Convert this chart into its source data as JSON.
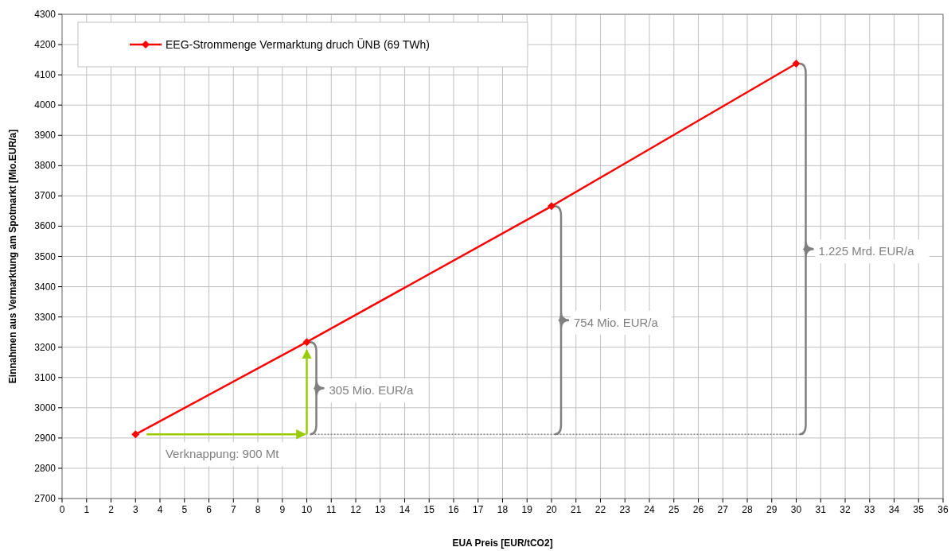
{
  "chart_data": {
    "type": "line",
    "xlabel": "EUA Preis [EUR/tCO2]",
    "ylabel": "Einnahmen aus Vermarktung am Spotmarkt [Mio.EUR/a]",
    "x": [
      3,
      10,
      20,
      30
    ],
    "series": [
      {
        "name": "EEG-Strommenge Vermarktung druch ÜNB (69 TWh)",
        "color": "#ff0000",
        "values": [
          2912,
          3217,
          3666,
          4137
        ]
      }
    ],
    "xlim": [
      0,
      36
    ],
    "xticks": [
      0,
      1,
      2,
      3,
      4,
      5,
      6,
      7,
      8,
      9,
      10,
      11,
      12,
      13,
      14,
      15,
      16,
      17,
      18,
      19,
      20,
      21,
      22,
      23,
      24,
      25,
      26,
      27,
      28,
      29,
      30,
      31,
      32,
      33,
      34,
      35,
      36
    ],
    "ylim": [
      2700,
      4300
    ],
    "yticks": [
      2700,
      2800,
      2900,
      3000,
      3100,
      3200,
      3300,
      3400,
      3500,
      3600,
      3700,
      3800,
      3900,
      4000,
      4100,
      4200,
      4300
    ],
    "ref_lines": [
      {
        "axis": "y",
        "value": 2912,
        "color": "#808080",
        "line_style": "dotted"
      }
    ],
    "grid": true,
    "legend": "top left",
    "marker": "diamond",
    "line_style": "solid",
    "annotations": [
      "Verknappung: 900 Mt",
      "305 Mio. EUR/a",
      "754 Mio. EUR/a",
      "1.225 Mrd. EUR/a"
    ]
  }
}
